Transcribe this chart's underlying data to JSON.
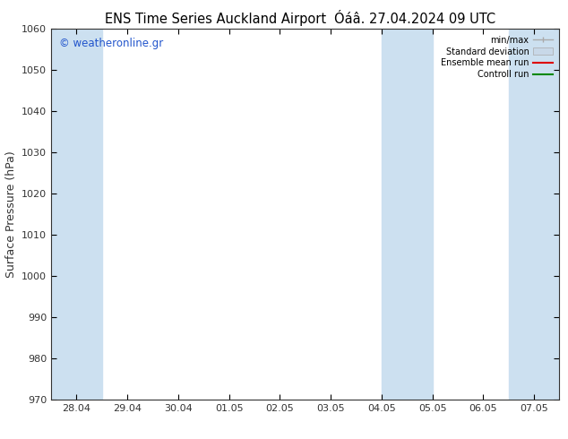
{
  "title_left": "ENS Time Series Auckland Airport",
  "title_right": "Óáâ. 27.04.2024 09 UTC",
  "ylabel": "Surface Pressure (hPa)",
  "ylim": [
    970,
    1060
  ],
  "yticks": [
    970,
    980,
    990,
    1000,
    1010,
    1020,
    1030,
    1040,
    1050,
    1060
  ],
  "xtick_labels": [
    "28.04",
    "29.04",
    "30.04",
    "01.05",
    "02.05",
    "03.05",
    "04.05",
    "05.05",
    "06.05",
    "07.05"
  ],
  "xtick_positions": [
    0,
    1,
    2,
    3,
    4,
    5,
    6,
    7,
    8,
    9
  ],
  "xlim": [
    -0.5,
    9.5
  ],
  "shaded_bands": [
    {
      "x_start": -0.5,
      "x_end": 0.5
    },
    {
      "x_start": 6.0,
      "x_end": 7.0
    },
    {
      "x_start": 8.5,
      "x_end": 9.5
    }
  ],
  "band_color": "#cce0f0",
  "watermark": "© weatheronline.gr",
  "legend_labels": [
    "min/max",
    "Standard deviation",
    "Ensemble mean run",
    "Controll run"
  ],
  "legend_line_color": "#aaaaaa",
  "legend_std_color": "#c8d8e8",
  "legend_mean_color": "#dd0000",
  "legend_ctrl_color": "#008800",
  "background_color": "#ffffff",
  "title_fontsize": 10.5,
  "tick_fontsize": 8,
  "ylabel_fontsize": 9
}
